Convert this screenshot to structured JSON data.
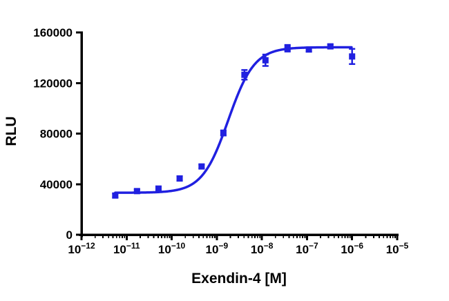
{
  "figure": {
    "background": "#ffffff",
    "description": "Dose-response curve of Exendin-4, luminescence readout (RLU)"
  },
  "style": {
    "accent": "#2020e0",
    "axis_color": "#000000"
  },
  "chart_data": {
    "type": "scatter",
    "title": "",
    "xlabel": "Exendin-4 [M]",
    "ylabel": "RLU",
    "x_scale": "log",
    "x_range_exponents": [
      -12,
      -5
    ],
    "x_tick_exponents": [
      -12,
      -11,
      -10,
      -9,
      -8,
      -7,
      -6,
      -5
    ],
    "ylim": [
      0,
      160000
    ],
    "y_ticks": [
      0,
      40000,
      80000,
      120000,
      160000
    ],
    "grid": false,
    "legend": "none",
    "series": [
      {
        "name": "Exendin-4",
        "marker": "square",
        "color": "#2020e0",
        "x": [
          5.6e-12,
          1.7e-11,
          5.1e-11,
          1.5e-10,
          4.6e-10,
          1.4e-09,
          4.1e-09,
          1.2e-08,
          3.7e-08,
          1.1e-07,
          3.3e-07,
          1e-06
        ],
        "y": [
          31000,
          34500,
          36500,
          44500,
          54000,
          80500,
          126500,
          138000,
          147500,
          146500,
          149000,
          141000
        ],
        "y_err": [
          1500,
          1200,
          1300,
          1800,
          1500,
          2000,
          3800,
          4500,
          2600,
          1600,
          1500,
          6000
        ]
      }
    ],
    "fit_curve": {
      "model": "4PL-sigmoid",
      "bottom": 33200,
      "top": 148300,
      "ec50": 1.8e-09,
      "hill": 1.5
    }
  }
}
